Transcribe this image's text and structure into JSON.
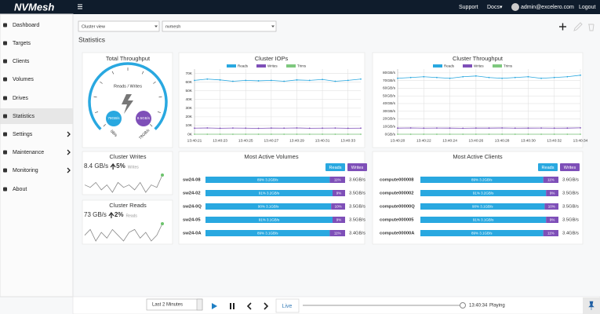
{
  "header": {
    "logo": "NVMesh",
    "links": [
      "Support",
      "Docs▾"
    ],
    "user": "admin@excelero.com",
    "logout": "Logout"
  },
  "sidebar": [
    {
      "label": "Dashboard",
      "arrow": false,
      "active": false
    },
    {
      "label": "Targets",
      "arrow": false,
      "active": false
    },
    {
      "label": "Clients",
      "arrow": false,
      "active": false
    },
    {
      "label": "Volumes",
      "arrow": false,
      "active": false
    },
    {
      "label": "Drives",
      "arrow": false,
      "active": false
    },
    {
      "label": "Statistics",
      "arrow": false,
      "active": true
    },
    {
      "label": "Settings",
      "arrow": true,
      "active": false
    },
    {
      "label": "Maintenance",
      "arrow": true,
      "active": false
    },
    {
      "label": "Monitoring",
      "arrow": true,
      "active": false
    },
    {
      "label": "About",
      "arrow": false,
      "active": false
    }
  ],
  "filters": [
    "Cluster view",
    "nvmesh"
  ],
  "page_title": "Statistics",
  "total_throughput": {
    "title": "Total Throughput",
    "subtitle": "Reads / Writes",
    "reads": {
      "value": 78,
      "label": "78GB/s",
      "color": "#29a8e0"
    },
    "writes": {
      "value": 8.5,
      "label": "8.5GB/s",
      "color": "#7e4fb8"
    },
    "scale_labels": [
      "0B/s",
      "78GB/s"
    ]
  },
  "chart_data": [
    {
      "type": "line",
      "title": "Cluster IOPs",
      "categories": [
        "13:40:21",
        null,
        "13:40:23",
        null,
        "13:40:25",
        null,
        "13:40:27",
        null,
        "13:40:29",
        null,
        "13:40:31",
        null,
        "13:40:33",
        null
      ],
      "series": [
        {
          "name": "Reads",
          "color": "#29a8e0",
          "values": [
            62000,
            63500,
            62500,
            61000,
            62000,
            61500,
            62000,
            61000,
            62500,
            62000,
            63000,
            61000,
            62000,
            63500
          ]
        },
        {
          "name": "Writes",
          "color": "#7e4fb8",
          "values": [
            7000,
            7200,
            6900,
            7100,
            7000,
            6800,
            7100,
            7000,
            7200,
            6900,
            7000,
            7100,
            6900,
            7000
          ]
        },
        {
          "name": "Trims",
          "color": "#7ec87e",
          "values": [
            0,
            0,
            0,
            0,
            0,
            0,
            0,
            0,
            0,
            0,
            0,
            0,
            0,
            0
          ]
        }
      ],
      "ylim": [
        0,
        75000
      ],
      "yticks": [
        {
          "value": 0,
          "label": "0K"
        },
        {
          "value": 10000,
          "label": "10K"
        },
        {
          "value": 20000,
          "label": "20K"
        },
        {
          "value": 30000,
          "label": "30K"
        },
        {
          "value": 40000,
          "label": "40K"
        },
        {
          "value": 50000,
          "label": "50K"
        },
        {
          "value": 60000,
          "label": "60K"
        },
        {
          "value": 70000,
          "label": "70K"
        }
      ],
      "grid": true
    },
    {
      "type": "line",
      "title": "Cluster Throughput",
      "categories": [
        "13:40:20",
        null,
        "13:40:22",
        null,
        "13:40:24",
        null,
        "13:40:26",
        null,
        "13:40:28",
        null,
        "13:40:30",
        null,
        "13:40:32",
        null,
        "13:40:34"
      ],
      "series": [
        {
          "name": "Reads",
          "color": "#29a8e0",
          "values": [
            73,
            74,
            75,
            74,
            73,
            75,
            76,
            74,
            73,
            74,
            75,
            73,
            74,
            75,
            77
          ]
        },
        {
          "name": "Writes",
          "color": "#7e4fb8",
          "values": [
            8,
            8.2,
            7.9,
            8.1,
            8,
            7.8,
            8.1,
            8,
            8.2,
            7.9,
            8,
            8.1,
            7.9,
            8,
            8.3
          ]
        },
        {
          "name": "Trims",
          "color": "#7ec87e",
          "values": [
            0,
            0,
            0,
            0,
            0,
            0,
            0,
            0,
            0,
            0,
            0,
            0,
            0,
            0,
            0
          ]
        }
      ],
      "ylim": [
        0,
        85
      ],
      "yticks": [
        {
          "value": 0,
          "label": "0GB/s"
        },
        {
          "value": 10,
          "label": "10GB/s"
        },
        {
          "value": 20,
          "label": "20GB/s"
        },
        {
          "value": 30,
          "label": "30GB/s"
        },
        {
          "value": 40,
          "label": "40GB/s"
        },
        {
          "value": 50,
          "label": "50GB/s"
        },
        {
          "value": 60,
          "label": "60GB/s"
        },
        {
          "value": 70,
          "label": "70GB/s"
        },
        {
          "value": 80,
          "label": "80GB/s"
        }
      ],
      "grid": true
    }
  ],
  "cluster_writes": {
    "title": "Cluster Writes",
    "value": "8.4 GB/s",
    "change": "5%",
    "caption": "Writes",
    "trend": [
      5,
      4,
      6,
      3,
      5,
      2,
      6,
      4,
      5,
      3,
      6,
      2,
      5,
      4,
      9
    ]
  },
  "cluster_reads": {
    "title": "Cluster Reads",
    "value": "73 GB/s",
    "change": "2%",
    "caption": "Reads",
    "trend": [
      4,
      6,
      2,
      5,
      3,
      6,
      4,
      2,
      5,
      6,
      3,
      5,
      2,
      4,
      8
    ]
  },
  "volumes": {
    "title": "Most Active Volumes",
    "legend": [
      "Reads",
      "Writes"
    ],
    "colors": [
      "#29a8e0",
      "#7e4fb8"
    ],
    "rows": [
      {
        "name": "sw24-08",
        "read": 89,
        "read_label": "89% 3.2GB/s",
        "write": 11,
        "write_label": "11%",
        "total": "3.6GB/s"
      },
      {
        "name": "sw24-02",
        "read": 91,
        "read_label": "91% 3.2GB/s",
        "write": 9,
        "write_label": "9%",
        "total": "3.5GB/s"
      },
      {
        "name": "sw24-0Q",
        "read": 90,
        "read_label": "90% 3.1GB/s",
        "write": 10,
        "write_label": "10%",
        "total": "3.5GB/s"
      },
      {
        "name": "sw24-05",
        "read": 91,
        "read_label": "91% 3.1GB/s",
        "write": 9,
        "write_label": "9%",
        "total": "3.5GB/s"
      },
      {
        "name": "sw24-0A",
        "read": 89,
        "read_label": "89% 3.1GB/s",
        "write": 11,
        "write_label": "11%",
        "total": "3.4GB/s"
      }
    ]
  },
  "clients": {
    "title": "Most Active Clients",
    "legend": [
      "Reads",
      "Writes"
    ],
    "colors": [
      "#29a8e0",
      "#7e4fb8"
    ],
    "rows": [
      {
        "name": "compute000008",
        "read": 89,
        "read_label": "89% 3.2GB/s",
        "write": 11,
        "write_label": "11%",
        "total": "3.6GB/s"
      },
      {
        "name": "compute000002",
        "read": 91,
        "read_label": "91% 3.2GB/s",
        "write": 9,
        "write_label": "9%",
        "total": "3.5GB/s"
      },
      {
        "name": "compute00000Q",
        "read": 90,
        "read_label": "90% 3.1GB/s",
        "write": 10,
        "write_label": "10%",
        "total": "3.5GB/s"
      },
      {
        "name": "compute000005",
        "read": 91,
        "read_label": "91% 3.1GB/s",
        "write": 9,
        "write_label": "9%",
        "total": "3.5GB/s"
      },
      {
        "name": "compute00000A",
        "read": 89,
        "read_label": "89% 3.1GB/s",
        "write": 11,
        "write_label": "11%",
        "total": "3.4GB/s"
      }
    ]
  },
  "player": {
    "range": "Last 2 Minutes",
    "live": "Live",
    "time": "13:40:34",
    "status": "Playing"
  }
}
